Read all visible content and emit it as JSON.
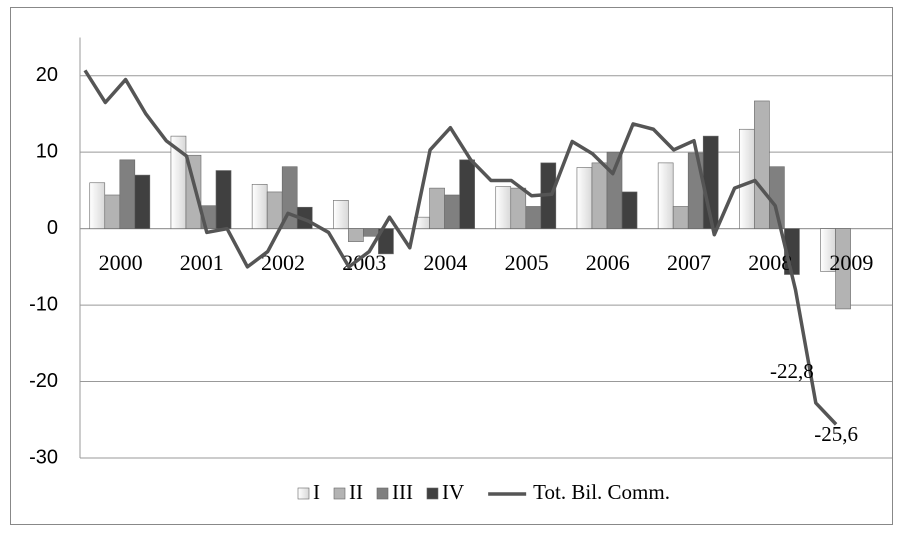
{
  "chart_data": {
    "type": "bar",
    "categories": [
      "2000",
      "2001",
      "2002",
      "2003",
      "2004",
      "2005",
      "2006",
      "2007",
      "2008",
      "2009"
    ],
    "series": [
      {
        "name": "I",
        "color": "#efefef",
        "values": [
          6,
          12.1,
          5.8,
          3.7,
          1.5,
          5.5,
          8,
          8.6,
          13,
          -5.6
        ]
      },
      {
        "name": "II",
        "color": "#b3b3b3",
        "values": [
          4.4,
          9.6,
          4.8,
          -1.7,
          5.3,
          5.3,
          8.6,
          2.9,
          16.7,
          -10.5
        ]
      },
      {
        "name": "III",
        "color": "#808080",
        "values": [
          9,
          3,
          8.1,
          -1,
          4.4,
          2.9,
          10,
          9.9,
          8.1,
          null
        ]
      },
      {
        "name": "IV",
        "color": "#404040",
        "values": [
          7,
          7.6,
          2.8,
          -3.3,
          9,
          8.6,
          4.8,
          12.1,
          -6,
          null
        ]
      }
    ],
    "line": {
      "name": "Tot. Bil. Comm.",
      "color": "#555555",
      "values": [
        20.7,
        16.5,
        19.5,
        15,
        11.5,
        9.5,
        -0.5,
        0,
        -5,
        -3,
        2,
        1,
        -0.5,
        -5,
        -3,
        1.5,
        -2.5,
        10.3,
        13.2,
        9,
        6.3,
        6.3,
        4.3,
        4.5,
        11.4,
        9.8,
        7.2,
        13.7,
        13,
        10.3,
        11.5,
        -0.8,
        5.3,
        6.3,
        3,
        -8,
        -22.8,
        -25.6
      ],
      "value_labels": [
        null,
        null,
        null,
        null,
        null,
        null,
        null,
        null,
        null,
        null,
        null,
        null,
        null,
        null,
        null,
        null,
        null,
        null,
        null,
        null,
        null,
        null,
        null,
        null,
        null,
        null,
        null,
        null,
        null,
        null,
        null,
        null,
        null,
        null,
        null,
        null,
        "-22,8",
        "-25,6"
      ]
    },
    "ylim": [
      -30,
      25
    ],
    "yticks": [
      -30,
      -20,
      -10,
      0,
      10,
      20
    ],
    "grid": true,
    "legend": "bottom"
  }
}
